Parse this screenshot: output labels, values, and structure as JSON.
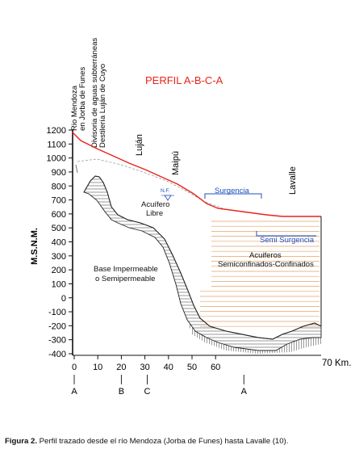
{
  "title": "PERFIL A-B-C-A",
  "colors": {
    "title": "#e8231a",
    "surface": "#e8231a",
    "water": "#1f4fbf",
    "aquifer_lines": "#e0a36a",
    "basement": "#222222"
  },
  "labels": {
    "rio_line1": "Rio Mendoza",
    "rio_line2": "en Jorba de Funes",
    "divisoria_line1": "Divisoria de aguas subterráneas",
    "divisoria_line2": "Destilería Luján de Cuyo",
    "lujan": "Luján",
    "maipu": "Maipú",
    "lavalle": "Lavalle",
    "surgencia": "Surgencia",
    "semi_surgencia": "Semi Surgencia",
    "nf": "N.F.",
    "acuifero_libre_1": "Acuífero",
    "acuifero_libre_2": "Libre",
    "acuiferos_1": "Acuiferos",
    "acuiferos_2": "Semiconfinados-Confinados",
    "base_1": "Base Impermeable",
    "base_2": "o Semipermeable"
  },
  "y_axis": {
    "label": "M.S.N.M.",
    "ticks": [
      "1200",
      "1100",
      "1000",
      "900",
      "800",
      "700",
      "600",
      "500",
      "400",
      "300",
      "200",
      "100",
      "0",
      "-100",
      "-200",
      "-300",
      "-400"
    ]
  },
  "x_axis": {
    "ticks": [
      "0",
      "10",
      "20",
      "30",
      "40",
      "50",
      "60"
    ],
    "end_label": "70 Km."
  },
  "section_points": [
    {
      "label": "A",
      "km": 0
    },
    {
      "label": "B",
      "km": 20
    },
    {
      "label": "C",
      "km": 31
    },
    {
      "label": "A",
      "km": 72
    }
  ],
  "caption": {
    "bold": "Figura 2.",
    "text": " Perfil trazado desde el río Mendoza (Jorba de Funes) hasta Lavalle (10)."
  }
}
